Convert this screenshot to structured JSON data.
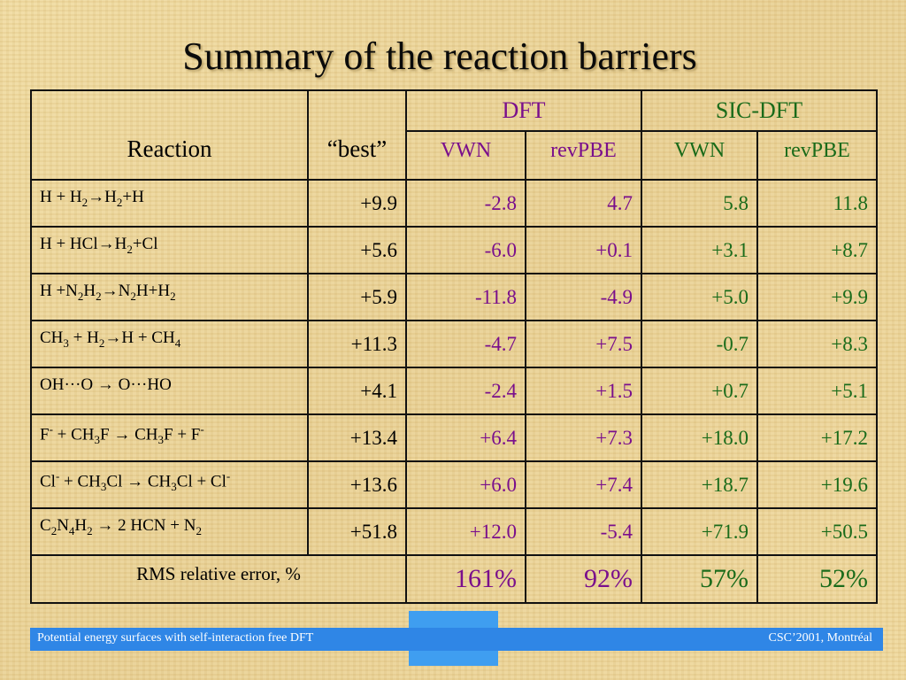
{
  "title": "Summary of the reaction barriers",
  "table": {
    "headers": {
      "reaction": "Reaction",
      "best": "“best”",
      "dft": "DFT",
      "sic_dft": "SIC-DFT",
      "vwn": "VWN",
      "revpbe": "revPBE"
    },
    "rows": [
      {
        "best": "+9.9",
        "dft_vwn": "-2.8",
        "dft_revpbe": "4.7",
        "sic_vwn": "5.8",
        "sic_revpbe": "11.8"
      },
      {
        "best": "+5.6",
        "dft_vwn": "-6.0",
        "dft_revpbe": "+0.1",
        "sic_vwn": "+3.1",
        "sic_revpbe": "+8.7"
      },
      {
        "best": "+5.9",
        "dft_vwn": "-11.8",
        "dft_revpbe": "-4.9",
        "sic_vwn": "+5.0",
        "sic_revpbe": "+9.9"
      },
      {
        "best": "+11.3",
        "dft_vwn": "-4.7",
        "dft_revpbe": "+7.5",
        "sic_vwn": "-0.7",
        "sic_revpbe": "+8.3"
      },
      {
        "best": "+4.1",
        "dft_vwn": "-2.4",
        "dft_revpbe": "+1.5",
        "sic_vwn": "+0.7",
        "sic_revpbe": "+5.1"
      },
      {
        "best": "+13.4",
        "dft_vwn": "+6.4",
        "dft_revpbe": "+7.3",
        "sic_vwn": "+18.0",
        "sic_revpbe": "+17.2"
      },
      {
        "best": "+13.6",
        "dft_vwn": "+6.0",
        "dft_revpbe": "+7.4",
        "sic_vwn": "+18.7",
        "sic_revpbe": "+19.6"
      },
      {
        "best": "+51.8",
        "dft_vwn": "+12.0",
        "dft_revpbe": "-5.4",
        "sic_vwn": "+71.9",
        "sic_revpbe": "+50.5"
      }
    ],
    "reactions": {
      "r1": {
        "a": "H + H",
        "b": "2",
        "c": "→H",
        "d": "2",
        "e": "+H"
      },
      "r2": {
        "a": "H + HCl→H",
        "b": "2",
        "c": "+Cl"
      },
      "r3": {
        "a": "H +N",
        "b": "2",
        "c": "H",
        "d": "2",
        "e": "→N",
        "f": "2",
        "g": "H+H",
        "h": "2"
      },
      "r4": {
        "a": "CH",
        "b": "3",
        "c": " + H",
        "d": "2",
        "e": "→H + CH",
        "f": "4"
      },
      "r5": {
        "a": "OH···O → O···HO"
      },
      "r6": {
        "a": "F",
        "b": "-",
        "c": " + CH",
        "d": "3",
        "e": "F → CH",
        "f": "3",
        "g": "F + F",
        "h": "-"
      },
      "r7": {
        "a": "Cl",
        "b": "-",
        "c": " + CH",
        "d": "3",
        "e": "Cl → CH",
        "f": "3",
        "g": "Cl + Cl",
        "h": "-"
      },
      "r8": {
        "a": "C",
        "b": "2",
        "c": "N",
        "d": "4",
        "e": "H",
        "f": "2",
        "g": " → 2 HCN + N",
        "h": "2"
      }
    },
    "rms": {
      "label": "RMS relative error, %",
      "dft_vwn": "161%",
      "dft_revpbe": "92%",
      "sic_vwn": "57%",
      "sic_revpbe": "52%"
    }
  },
  "footer": {
    "left": "Potential energy surfaces with self-interaction free DFT",
    "right": "CSC’2001, Montréal"
  },
  "colors": {
    "dft": "#7a0f8c",
    "sic_dft": "#1a6b1a",
    "footer": "#2f86e6"
  }
}
